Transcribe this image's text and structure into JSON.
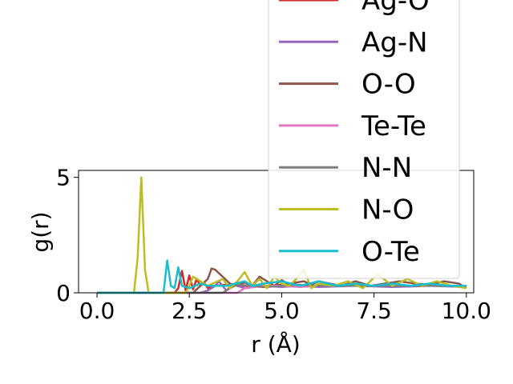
{
  "chart_data": {
    "type": "line",
    "xlabel": "r (Å)",
    "ylabel": "g(r)",
    "xlim": [
      -0.5,
      10.2
    ],
    "ylim": [
      0,
      5.3
    ],
    "xticks": [
      0.0,
      2.5,
      5.0,
      7.5,
      10.0
    ],
    "xtick_labels": [
      "0.0",
      "2.5",
      "5.0",
      "7.5",
      "10.0"
    ],
    "yticks": [
      0,
      5
    ],
    "ytick_labels": [
      "0",
      "5"
    ],
    "grid": false,
    "legend_position": "upper-right",
    "series": [
      {
        "name": "Ag-O",
        "color": "#d62728",
        "x": [
          0,
          1,
          2.1,
          2.2,
          2.3,
          2.4,
          2.5,
          2.6,
          2.7,
          2.8,
          2.9,
          3.0,
          3.2,
          3.5,
          4.0,
          4.5,
          5.0,
          5.5,
          6.0,
          6.5,
          7.0,
          7.5,
          8.0,
          8.5,
          9.0,
          9.5,
          10.0
        ],
        "y": [
          0,
          0,
          0,
          0.2,
          0.95,
          0.1,
          0.75,
          0.15,
          0.6,
          0.3,
          0.45,
          0.2,
          0.3,
          0.35,
          0.3,
          0.25,
          0.35,
          0.3,
          0.3,
          0.3,
          0.3,
          0.3,
          0.3,
          0.3,
          0.3,
          0.3,
          0.3
        ]
      },
      {
        "name": "Ag-N",
        "color": "#9467bd",
        "x": [
          0,
          1,
          2.8,
          3.0,
          3.2,
          3.3,
          3.5,
          3.7,
          4.0,
          4.5,
          5.0,
          5.5,
          6.0,
          7.0,
          8.0,
          9.0,
          10.0
        ],
        "y": [
          0,
          0,
          0,
          0.1,
          0.3,
          0.5,
          0.1,
          0.35,
          0.2,
          0.3,
          0.25,
          0.3,
          0.25,
          0.3,
          0.25,
          0.3,
          0.25
        ]
      },
      {
        "name": "O-O",
        "color": "#8c564b",
        "x": [
          0,
          1,
          2.6,
          2.8,
          3.0,
          3.1,
          3.2,
          3.4,
          3.6,
          3.8,
          4.0,
          4.2,
          4.4,
          4.6,
          4.8,
          5.0,
          5.2,
          5.4,
          5.6,
          5.8,
          6.0,
          6.3,
          6.6,
          7.0,
          7.4,
          7.8,
          8.2,
          8.6,
          9.0,
          9.4,
          9.8,
          10.0
        ],
        "y": [
          0,
          0,
          0,
          0.3,
          0.6,
          1.05,
          1.0,
          0.7,
          0.4,
          0.3,
          0.45,
          0.3,
          0.7,
          0.5,
          0.3,
          0.55,
          0.35,
          0.45,
          0.5,
          0.35,
          0.5,
          0.4,
          0.3,
          0.5,
          0.3,
          0.4,
          0.5,
          0.4,
          0.35,
          0.5,
          0.4,
          0.2
        ]
      },
      {
        "name": "Te-Te",
        "color": "#e377c2",
        "x": [
          0,
          1,
          3.8,
          4.0,
          4.5,
          5.0,
          5.5,
          6.0,
          7.0,
          8.0,
          9.0,
          10.0
        ],
        "y": [
          0,
          0,
          0,
          0.2,
          0.3,
          0.3,
          0.25,
          0.3,
          0.3,
          0.3,
          0.3,
          0.3
        ]
      },
      {
        "name": "N-N",
        "color": "#7f7f7f",
        "x": [
          0,
          1,
          3.4,
          3.6,
          3.8,
          4.2,
          4.6,
          5.0,
          5.4,
          6.0,
          7.0,
          8.0,
          9.0,
          10.0
        ],
        "y": [
          0,
          0,
          0,
          0.2,
          0.35,
          0.3,
          0.25,
          0.3,
          0.35,
          0.3,
          0.3,
          0.3,
          0.3,
          0.3
        ]
      },
      {
        "name": "N-O",
        "color": "#bcbd22",
        "x": [
          0,
          1.0,
          1.1,
          1.2,
          1.3,
          1.4,
          2.4,
          2.5,
          2.6,
          2.8,
          3.0,
          3.4,
          3.6,
          3.8,
          4.0,
          4.2,
          4.4,
          4.6,
          4.8,
          5.0,
          5.2,
          5.4,
          5.6,
          5.8,
          6.0,
          6.4,
          6.8,
          7.2,
          7.6,
          8.0,
          8.4,
          8.8,
          9.2,
          9.6,
          10.0
        ],
        "y": [
          0,
          0,
          1.5,
          5.0,
          1.0,
          0,
          0,
          0.3,
          0.7,
          0.5,
          0.3,
          0.6,
          0.2,
          0.5,
          0.9,
          0.3,
          0.6,
          0.2,
          0.7,
          0.4,
          0.3,
          0.6,
          1.0,
          0.2,
          0.4,
          0.3,
          0.5,
          0.2,
          0.8,
          0.3,
          0.6,
          0.3,
          0.5,
          0.3,
          0.2
        ]
      },
      {
        "name": "O-Te",
        "color": "#17becf",
        "x": [
          0,
          1,
          1.8,
          1.9,
          2.0,
          2.1,
          2.2,
          2.3,
          2.5,
          2.8,
          3.0,
          3.5,
          4.0,
          4.2,
          4.5,
          5.0,
          5.5,
          6.0,
          6.5,
          7.0,
          7.5,
          8.0,
          8.5,
          9.0,
          9.5,
          10.0
        ],
        "y": [
          0,
          0,
          0,
          1.4,
          0.3,
          0.2,
          1.1,
          0.3,
          0.2,
          0.4,
          0.3,
          0.3,
          0.5,
          0.3,
          0.4,
          0.5,
          0.3,
          0.5,
          0.3,
          0.4,
          0.3,
          0.4,
          0.3,
          0.4,
          0.3,
          0.3
        ]
      }
    ]
  }
}
